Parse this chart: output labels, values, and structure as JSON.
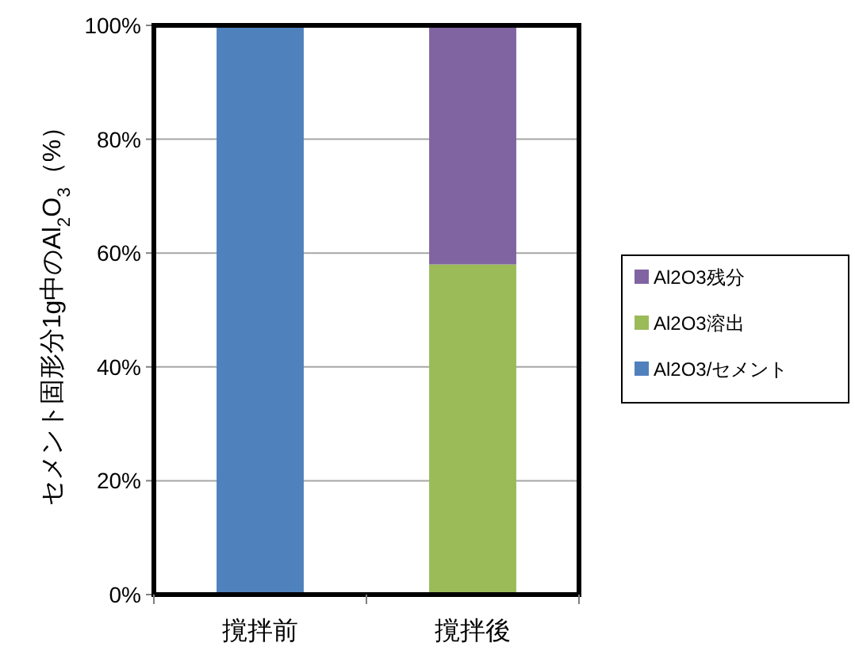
{
  "chart_data": {
    "type": "bar",
    "stacked": true,
    "ylabel": "セメント固形分1g中のAl$_{2}$O$_{3}$（%）",
    "categories": [
      "撹拌前",
      "撹拌後"
    ],
    "series": [
      {
        "name": "Al2O3/セメント",
        "color": "#4f81bd",
        "values": [
          100,
          null
        ]
      },
      {
        "name": "Al2O3溶出",
        "color": "#9bbb59",
        "values": [
          null,
          58
        ]
      },
      {
        "name": "Al2O3残分",
        "color": "#8064a2",
        "values": [
          null,
          42
        ]
      }
    ],
    "ylim": [
      0,
      100
    ],
    "yticks": [
      {
        "value": 0,
        "label": "0%"
      },
      {
        "value": 20,
        "label": "20%"
      },
      {
        "value": 40,
        "label": "40%"
      },
      {
        "value": 60,
        "label": "60%"
      },
      {
        "value": 80,
        "label": "80%"
      },
      {
        "value": 100,
        "label": "100%"
      }
    ],
    "grid": "y",
    "legend": "right"
  }
}
